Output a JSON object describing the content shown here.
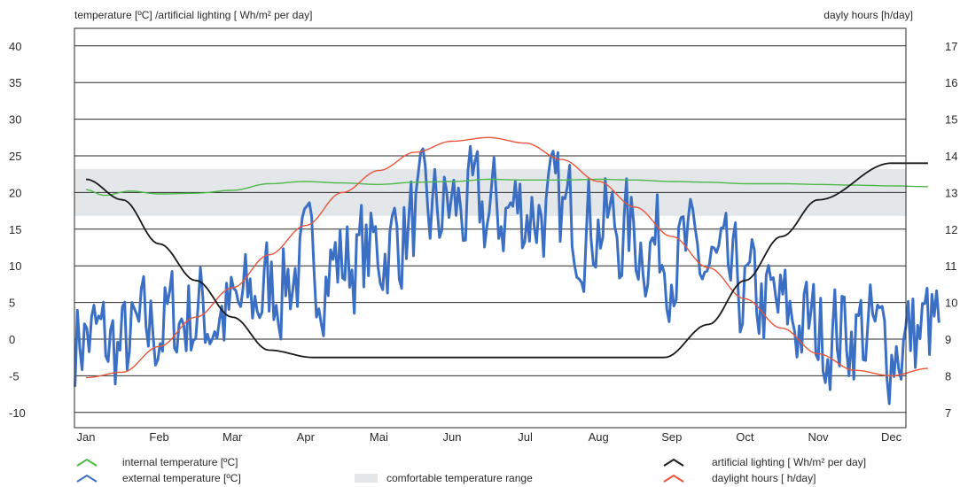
{
  "axis_titles": {
    "left": "temperature [ºC] /artificial lighting [ Wh/m² per day]",
    "right": "dayly hours [h/day]"
  },
  "legend": {
    "internal": "internal temperature [ºC]",
    "external": "external temperature [ºC]",
    "comfort": "comfortable temperature range",
    "lighting": "artificial lighting [ Wh/m² per day]",
    "daylight": "daylight hours [ h/day]"
  },
  "colors": {
    "internal": "#4fb84a",
    "external": "#3a6fc4",
    "comfort": "#e4e7ea",
    "lighting": "#1a1a1a",
    "daylight": "#e8553b",
    "grid": "#2a2a2a"
  },
  "chart_data": {
    "type": "line",
    "x_categories": [
      "Jan",
      "Feb",
      "Mar",
      "Apr",
      "Mai",
      "Jun",
      "Jul",
      "Aug",
      "Sep",
      "Oct",
      "Nov",
      "Dec"
    ],
    "y_left": {
      "ticks": [
        "40",
        "35",
        "30",
        "25",
        "20",
        "15",
        "10",
        "5",
        "0",
        "-5",
        "-10"
      ],
      "ylim": [
        -12,
        42
      ]
    },
    "y_right": {
      "ticks": [
        "17",
        "16",
        "15",
        "14",
        "13",
        "12",
        "11",
        "10",
        "9",
        "8",
        "7"
      ],
      "ylim": [
        6.8,
        17.2
      ]
    },
    "grid": true,
    "comfort_range": [
      16.8,
      23.2
    ],
    "series": [
      {
        "name": "internal temperature [ºC]",
        "axis": "left",
        "points": [
          [
            0,
            20.4
          ],
          [
            0.25,
            19.6
          ],
          [
            0.6,
            20.2
          ],
          [
            1.0,
            19.8
          ],
          [
            1.5,
            19.9
          ],
          [
            2.0,
            20.3
          ],
          [
            2.5,
            21.2
          ],
          [
            3.0,
            21.5
          ],
          [
            3.5,
            21.3
          ],
          [
            4.0,
            21.1
          ],
          [
            4.5,
            21.4
          ],
          [
            5.0,
            21.5
          ],
          [
            5.5,
            21.8
          ],
          [
            6.0,
            21.7
          ],
          [
            6.5,
            21.7
          ],
          [
            7.0,
            21.8
          ],
          [
            7.5,
            21.7
          ],
          [
            8.0,
            21.5
          ],
          [
            8.5,
            21.4
          ],
          [
            9.0,
            21.2
          ],
          [
            9.5,
            21.2
          ],
          [
            10.0,
            21.1
          ],
          [
            10.5,
            21.0
          ],
          [
            11.0,
            20.9
          ],
          [
            11.5,
            20.8
          ]
        ]
      },
      {
        "name": "external temperature [ºC]",
        "axis": "left",
        "seasonal_points": [
          [
            0,
            0.5
          ],
          [
            0.5,
            -1.5
          ],
          [
            1.0,
            2
          ],
          [
            1.5,
            3.5
          ],
          [
            2.0,
            3
          ],
          [
            2.5,
            7
          ],
          [
            3.0,
            10
          ],
          [
            3.5,
            10.5
          ],
          [
            4.0,
            12
          ],
          [
            4.5,
            16
          ],
          [
            5.0,
            18
          ],
          [
            5.5,
            17
          ],
          [
            6.0,
            18
          ],
          [
            6.5,
            17
          ],
          [
            7.0,
            16
          ],
          [
            7.5,
            14
          ],
          [
            8.0,
            12
          ],
          [
            8.5,
            9.5
          ],
          [
            9.0,
            6
          ],
          [
            9.5,
            3.5
          ],
          [
            10.0,
            1
          ],
          [
            10.5,
            1.5
          ],
          [
            11.0,
            -1
          ],
          [
            11.5,
            1.5
          ]
        ],
        "range": [
          -10.5,
          29.5
        ]
      },
      {
        "name": "artificial lighting [ Wh/m² per day]",
        "axis": "left",
        "points": [
          [
            0,
            21.8
          ],
          [
            0.5,
            19
          ],
          [
            1.0,
            13
          ],
          [
            1.5,
            8
          ],
          [
            2.0,
            3
          ],
          [
            2.5,
            -1.5
          ],
          [
            3.1,
            -2.5
          ],
          [
            7.9,
            -2.5
          ],
          [
            8.5,
            2
          ],
          [
            9.0,
            8
          ],
          [
            9.5,
            14
          ],
          [
            10.0,
            19
          ],
          [
            11.0,
            24
          ],
          [
            11.5,
            24
          ]
        ]
      },
      {
        "name": "daylight hours [ h/day]",
        "axis": "right",
        "points": [
          [
            0,
            7.95
          ],
          [
            0.5,
            8.1
          ],
          [
            1.0,
            8.8
          ],
          [
            1.5,
            9.6
          ],
          [
            2.0,
            10.4
          ],
          [
            2.5,
            11.3
          ],
          [
            3.0,
            12.1
          ],
          [
            3.5,
            13.0
          ],
          [
            4.0,
            13.6
          ],
          [
            4.5,
            14.1
          ],
          [
            5.0,
            14.4
          ],
          [
            5.5,
            14.5
          ],
          [
            6.0,
            14.35
          ],
          [
            6.5,
            13.9
          ],
          [
            7.0,
            13.3
          ],
          [
            7.5,
            12.6
          ],
          [
            8.0,
            11.8
          ],
          [
            8.5,
            10.95
          ],
          [
            9.0,
            10.1
          ],
          [
            9.5,
            9.3
          ],
          [
            10.0,
            8.6
          ],
          [
            10.5,
            8.15
          ],
          [
            11.0,
            8.0
          ],
          [
            11.5,
            8.2
          ]
        ]
      }
    ]
  }
}
